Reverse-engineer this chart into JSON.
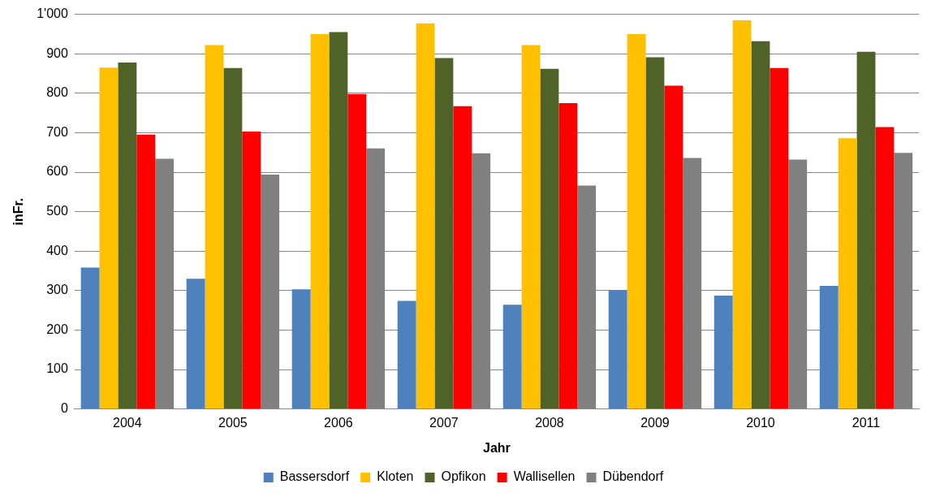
{
  "chart_data": {
    "type": "bar",
    "xlabel": "Jahr",
    "ylabel": "inFr.",
    "categories": [
      "2004",
      "2005",
      "2006",
      "2007",
      "2008",
      "2009",
      "2010",
      "2011"
    ],
    "series": [
      {
        "name": "Bassersdorf",
        "color": "#4f81bd",
        "values": [
          358,
          330,
          303,
          274,
          264,
          301,
          287,
          312
        ]
      },
      {
        "name": "Kloten",
        "color": "#ffc000",
        "values": [
          865,
          922,
          950,
          977,
          922,
          950,
          985,
          686
        ]
      },
      {
        "name": "Opfikon",
        "color": "#4f6228",
        "values": [
          878,
          864,
          955,
          889,
          862,
          891,
          932,
          905
        ]
      },
      {
        "name": "Wallisellen",
        "color": "#ff0000",
        "values": [
          695,
          703,
          798,
          767,
          775,
          819,
          864,
          714
        ]
      },
      {
        "name": "Dübendorf",
        "color": "#808080",
        "values": [
          634,
          594,
          660,
          648,
          566,
          636,
          632,
          649
        ]
      }
    ],
    "ylim": [
      0,
      1000
    ],
    "yticks": [
      0,
      100,
      200,
      300,
      400,
      500,
      600,
      700,
      800,
      900,
      {
        "value": 1000,
        "label": "1'000"
      }
    ],
    "grid": "y",
    "legend": "bottom"
  }
}
